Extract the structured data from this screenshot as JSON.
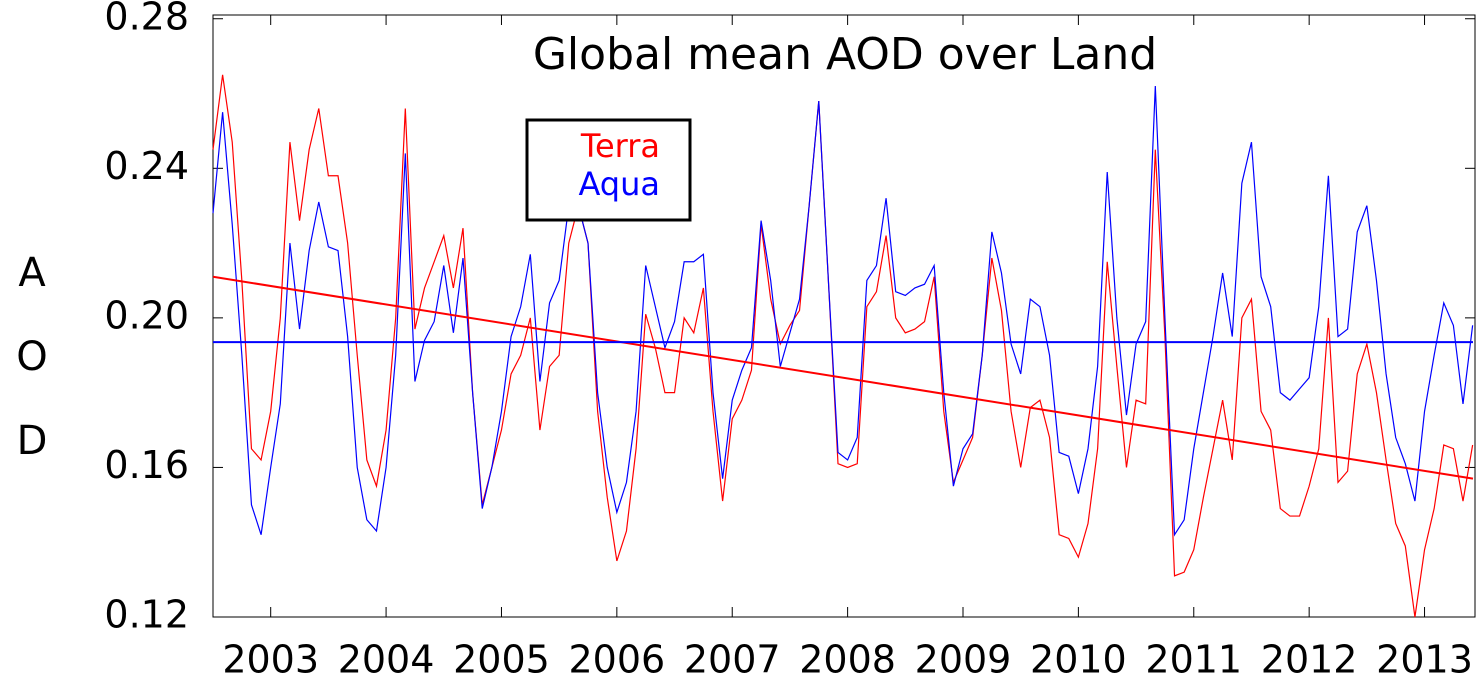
{
  "chart_data": {
    "type": "line",
    "title": "Global mean AOD over Land",
    "y_label": "AOD",
    "x": [
      2002.5,
      2002.5833,
      2002.6667,
      2002.75,
      2002.8333,
      2002.9167,
      2003,
      2003.0833,
      2003.1667,
      2003.25,
      2003.3333,
      2003.4167,
      2003.5,
      2003.5833,
      2003.6667,
      2003.75,
      2003.8333,
      2003.9167,
      2004,
      2004.0833,
      2004.1667,
      2004.25,
      2004.3333,
      2004.4167,
      2004.5,
      2004.5833,
      2004.6667,
      2004.75,
      2004.8333,
      2004.9167,
      2005,
      2005.0833,
      2005.1667,
      2005.25,
      2005.3333,
      2005.4167,
      2005.5,
      2005.5833,
      2005.6667,
      2005.75,
      2005.8333,
      2005.9167,
      2006,
      2006.0833,
      2006.1667,
      2006.25,
      2006.3333,
      2006.4167,
      2006.5,
      2006.5833,
      2006.6667,
      2006.75,
      2006.8333,
      2006.9167,
      2007,
      2007.0833,
      2007.1667,
      2007.25,
      2007.3333,
      2007.4167,
      2007.5,
      2007.5833,
      2007.6667,
      2007.75,
      2007.8333,
      2007.9167,
      2008,
      2008.0833,
      2008.1667,
      2008.25,
      2008.3333,
      2008.4167,
      2008.5,
      2008.5833,
      2008.6667,
      2008.75,
      2008.8333,
      2008.9167,
      2009,
      2009.0833,
      2009.1667,
      2009.25,
      2009.3333,
      2009.4167,
      2009.5,
      2009.5833,
      2009.6667,
      2009.75,
      2009.8333,
      2009.9167,
      2010,
      2010.0833,
      2010.1667,
      2010.25,
      2010.3333,
      2010.4167,
      2010.5,
      2010.5833,
      2010.6667,
      2010.75,
      2010.8333,
      2010.9167,
      2011,
      2011.0833,
      2011.1667,
      2011.25,
      2011.3333,
      2011.4167,
      2011.5,
      2011.5833,
      2011.6667,
      2011.75,
      2011.8333,
      2011.9167,
      2012,
      2012.0833,
      2012.1667,
      2012.25,
      2012.3333,
      2012.4167,
      2012.5,
      2012.5833,
      2012.6667,
      2012.75,
      2012.8333,
      2012.9167,
      2013,
      2013.0833,
      2013.1667,
      2013.25,
      2013.3333,
      2013.4167
    ],
    "series": [
      {
        "name": "Terra",
        "color": "#ff0000",
        "values": [
          0.245,
          0.265,
          0.247,
          0.21,
          0.165,
          0.162,
          0.175,
          0.2,
          0.247,
          0.226,
          0.245,
          0.256,
          0.238,
          0.238,
          0.22,
          0.19,
          0.162,
          0.155,
          0.17,
          0.2,
          0.256,
          0.197,
          0.208,
          0.215,
          0.222,
          0.208,
          0.224,
          0.18,
          0.15,
          0.16,
          0.17,
          0.185,
          0.19,
          0.2,
          0.17,
          0.187,
          0.19,
          0.22,
          0.23,
          0.22,
          0.175,
          0.152,
          0.135,
          0.143,
          0.165,
          0.201,
          0.192,
          0.18,
          0.18,
          0.2,
          0.196,
          0.208,
          0.175,
          0.151,
          0.173,
          0.178,
          0.186,
          0.225,
          0.205,
          0.193,
          0.198,
          0.202,
          0.23,
          0.258,
          0.21,
          0.161,
          0.16,
          0.161,
          0.203,
          0.207,
          0.222,
          0.2,
          0.196,
          0.197,
          0.199,
          0.211,
          0.175,
          0.156,
          0.162,
          0.168,
          0.19,
          0.216,
          0.202,
          0.175,
          0.16,
          0.176,
          0.178,
          0.168,
          0.142,
          0.141,
          0.136,
          0.145,
          0.165,
          0.215,
          0.187,
          0.16,
          0.178,
          0.177,
          0.245,
          0.195,
          0.131,
          0.132,
          0.138,
          0.152,
          0.165,
          0.178,
          0.162,
          0.2,
          0.205,
          0.175,
          0.17,
          0.149,
          0.147,
          0.147,
          0.155,
          0.165,
          0.2,
          0.156,
          0.159,
          0.185,
          0.193,
          0.18,
          0.162,
          0.145,
          0.139,
          0.12,
          0.138,
          0.149,
          0.166,
          0.165,
          0.151,
          0.166
        ],
        "trend": [
          0.211,
          0.157
        ]
      },
      {
        "name": "Aqua",
        "color": "#0000ff",
        "values": [
          0.228,
          0.255,
          0.225,
          0.19,
          0.15,
          0.142,
          0.16,
          0.177,
          0.22,
          0.197,
          0.218,
          0.231,
          0.219,
          0.218,
          0.195,
          0.16,
          0.146,
          0.143,
          0.16,
          0.19,
          0.244,
          0.183,
          0.194,
          0.199,
          0.214,
          0.196,
          0.216,
          0.18,
          0.149,
          0.16,
          0.175,
          0.195,
          0.203,
          0.217,
          0.183,
          0.204,
          0.21,
          0.23,
          0.23,
          0.22,
          0.18,
          0.16,
          0.148,
          0.156,
          0.175,
          0.214,
          0.203,
          0.192,
          0.199,
          0.215,
          0.215,
          0.217,
          0.18,
          0.157,
          0.178,
          0.186,
          0.192,
          0.226,
          0.21,
          0.187,
          0.196,
          0.205,
          0.23,
          0.258,
          0.21,
          0.164,
          0.162,
          0.168,
          0.21,
          0.214,
          0.232,
          0.207,
          0.206,
          0.208,
          0.209,
          0.214,
          0.18,
          0.155,
          0.165,
          0.169,
          0.19,
          0.223,
          0.212,
          0.193,
          0.185,
          0.205,
          0.203,
          0.19,
          0.164,
          0.163,
          0.153,
          0.165,
          0.187,
          0.239,
          0.2,
          0.174,
          0.193,
          0.199,
          0.262,
          0.2,
          0.142,
          0.146,
          0.165,
          0.18,
          0.195,
          0.212,
          0.195,
          0.236,
          0.247,
          0.211,
          0.203,
          0.18,
          0.178,
          0.181,
          0.184,
          0.203,
          0.238,
          0.195,
          0.197,
          0.223,
          0.23,
          0.21,
          0.185,
          0.168,
          0.161,
          0.151,
          0.175,
          0.19,
          0.204,
          0.198,
          0.177,
          0.198
        ],
        "trend": [
          0.1935,
          0.1935
        ]
      }
    ],
    "xlim": [
      2002.5,
      2013.42
    ],
    "xticks": [
      2003,
      2004,
      2005,
      2006,
      2007,
      2008,
      2009,
      2010,
      2011,
      2012,
      2013
    ],
    "ylim": [
      0.12,
      0.281
    ],
    "yticks": [
      0.12,
      0.16,
      {
        "value": 0.2,
        "label": "0.20"
      },
      0.24,
      0.28
    ],
    "legend": "upper-left"
  }
}
